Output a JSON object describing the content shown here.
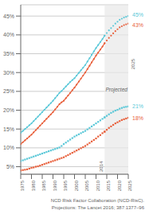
{
  "chart_data": {
    "type": "line",
    "x": [
      1975,
      1976,
      1977,
      1978,
      1979,
      1980,
      1981,
      1982,
      1983,
      1984,
      1985,
      1986,
      1987,
      1988,
      1989,
      1990,
      1991,
      1992,
      1993,
      1994,
      1995,
      1996,
      1997,
      1998,
      1999,
      2000,
      2001,
      2002,
      2003,
      2004,
      2005,
      2006,
      2007,
      2008,
      2009,
      2010,
      2011,
      2012,
      2013,
      2014,
      2015,
      2016,
      2017,
      2018,
      2019,
      2020,
      2021,
      2022,
      2023,
      2024,
      2025
    ],
    "xlim": [
      1975,
      2025
    ],
    "xticks": [
      1975,
      1980,
      1985,
      1990,
      1995,
      2000,
      2005,
      2010,
      2015,
      2020,
      2025
    ],
    "ylim": [
      3,
      48
    ],
    "yticks": [
      {
        "value": 5,
        "label": "5%"
      },
      {
        "value": 10,
        "label": "10%"
      },
      {
        "value": 15,
        "label": "15%"
      },
      {
        "value": 20,
        "label": "20%"
      },
      {
        "value": 25,
        "label": "25%"
      },
      {
        "value": 30,
        "label": "30%"
      },
      {
        "value": 35,
        "label": "35%"
      },
      {
        "value": 40,
        "label": "40%"
      },
      {
        "value": 45,
        "label": "45%"
      }
    ],
    "grid": true,
    "projection": {
      "start": 2014,
      "label": "Projected",
      "color": "#e8e8e8"
    },
    "annotations": [
      {
        "text": "2014",
        "x": 2014
      },
      {
        "text": "2025",
        "x": 2025
      }
    ],
    "source": "NCD Risk Factor Collaboration (NCD-RisC).\nProjections: The Lancet 2016; 387:1377–96",
    "series": [
      {
        "color": "#5BC8D8",
        "marker": "circle",
        "line_style": "solid",
        "end_label": "45%",
        "values": [
          14.0,
          14.5,
          15.0,
          15.5,
          16.0,
          16.5,
          17.1,
          17.7,
          18.3,
          18.9,
          19.5,
          20.1,
          20.7,
          21.3,
          21.9,
          22.5,
          23.2,
          23.9,
          24.6,
          25.1,
          25.7,
          26.3,
          26.9,
          27.5,
          28.0,
          28.5,
          29.2,
          29.9,
          30.6,
          31.3,
          32.0,
          32.9,
          33.8,
          34.7,
          35.6,
          36.5,
          37.3,
          38.1,
          38.9,
          39.8,
          40.5,
          41.2,
          41.8,
          42.4,
          43.0,
          43.5,
          44.0,
          44.3,
          44.6,
          44.8,
          45.0
        ]
      },
      {
        "color": "#E8603C",
        "marker": "circle",
        "line_style": "solid",
        "end_label": "43%",
        "values": [
          11.0,
          11.5,
          12.0,
          12.5,
          13.0,
          13.5,
          14.1,
          14.7,
          15.3,
          15.9,
          16.5,
          17.1,
          17.7,
          18.3,
          18.9,
          19.5,
          20.2,
          20.9,
          21.6,
          22.1,
          22.5,
          23.2,
          23.9,
          24.6,
          25.3,
          26.0,
          26.8,
          27.6,
          28.4,
          29.2,
          30.0,
          30.9,
          31.8,
          32.7,
          33.6,
          34.5,
          35.3,
          36.1,
          36.9,
          37.8,
          38.5,
          39.2,
          39.8,
          40.4,
          41.0,
          41.5,
          42.0,
          42.3,
          42.6,
          42.8,
          43.0
        ]
      },
      {
        "color": "#5BC8D8",
        "marker": "square",
        "line_style": "none",
        "end_label": "21%",
        "values": [
          6.5,
          6.7,
          6.9,
          7.1,
          7.3,
          7.5,
          7.7,
          7.9,
          8.1,
          8.3,
          8.5,
          8.7,
          8.9,
          9.1,
          9.3,
          9.5,
          9.7,
          9.9,
          10.1,
          10.5,
          11.0,
          11.4,
          11.8,
          12.2,
          12.6,
          13.0,
          13.3,
          13.6,
          13.9,
          14.2,
          14.5,
          14.9,
          15.3,
          15.7,
          16.1,
          16.5,
          16.9,
          17.3,
          17.7,
          18.1,
          18.5,
          18.9,
          19.3,
          19.6,
          19.9,
          20.1,
          20.4,
          20.6,
          20.8,
          20.9,
          21.0
        ]
      },
      {
        "color": "#E8603C",
        "marker": "square",
        "line_style": "none",
        "end_label": "18%",
        "values": [
          4.0,
          4.1,
          4.2,
          4.3,
          4.5,
          4.7,
          4.8,
          5.0,
          5.1,
          5.3,
          5.5,
          5.7,
          5.9,
          6.1,
          6.3,
          6.5,
          6.7,
          6.9,
          7.1,
          7.3,
          7.5,
          7.8,
          8.1,
          8.4,
          8.7,
          9.0,
          9.3,
          9.6,
          9.9,
          10.2,
          10.5,
          10.9,
          11.3,
          11.7,
          12.1,
          12.5,
          13.0,
          13.4,
          13.9,
          14.3,
          14.8,
          15.3,
          15.7,
          16.1,
          16.5,
          16.8,
          17.1,
          17.4,
          17.6,
          17.8,
          18.0
        ]
      }
    ]
  }
}
